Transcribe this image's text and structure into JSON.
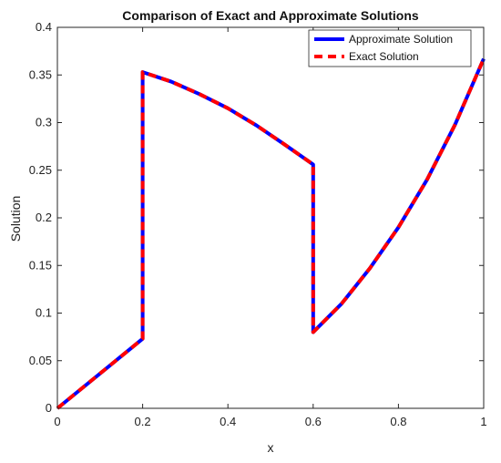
{
  "chart_data": {
    "type": "line",
    "title": "Comparison of Exact and Approximate Solutions",
    "xlabel": "x",
    "ylabel": "Solution",
    "xlim": [
      0,
      1
    ],
    "ylim": [
      0,
      0.4
    ],
    "xticks": [
      0,
      0.2,
      0.4,
      0.6,
      0.8,
      1
    ],
    "yticks": [
      0,
      0.05,
      0.1,
      0.15,
      0.2,
      0.25,
      0.3,
      0.35,
      0.4
    ],
    "xtick_labels": [
      "0",
      "0.2",
      "0.4",
      "0.6",
      "0.8",
      "1"
    ],
    "ytick_labels": [
      "0",
      "0.05",
      "0.1",
      "0.15",
      "0.2",
      "0.25",
      "0.3",
      "0.35",
      "0.4"
    ],
    "grid": false,
    "legend_position": "top-right",
    "series": [
      {
        "name": "Approximate Solution",
        "color": "#0000ff",
        "style": "solid",
        "x": [
          0,
          0.2,
          0.2,
          0.267,
          0.333,
          0.4,
          0.467,
          0.533,
          0.6,
          0.6,
          0.667,
          0.733,
          0.8,
          0.867,
          0.933,
          1.0
        ],
        "y": [
          0,
          0.073,
          0.353,
          0.343,
          0.33,
          0.315,
          0.297,
          0.277,
          0.256,
          0.08,
          0.11,
          0.147,
          0.19,
          0.24,
          0.298,
          0.367
        ]
      },
      {
        "name": "Exact Solution",
        "color": "#ff0000",
        "style": "dashed",
        "x": [
          0,
          0.2,
          0.2,
          0.267,
          0.333,
          0.4,
          0.467,
          0.533,
          0.6,
          0.6,
          0.667,
          0.733,
          0.8,
          0.867,
          0.933,
          1.0
        ],
        "y": [
          0,
          0.073,
          0.353,
          0.343,
          0.33,
          0.315,
          0.297,
          0.277,
          0.256,
          0.08,
          0.11,
          0.147,
          0.19,
          0.24,
          0.298,
          0.367
        ]
      }
    ]
  }
}
